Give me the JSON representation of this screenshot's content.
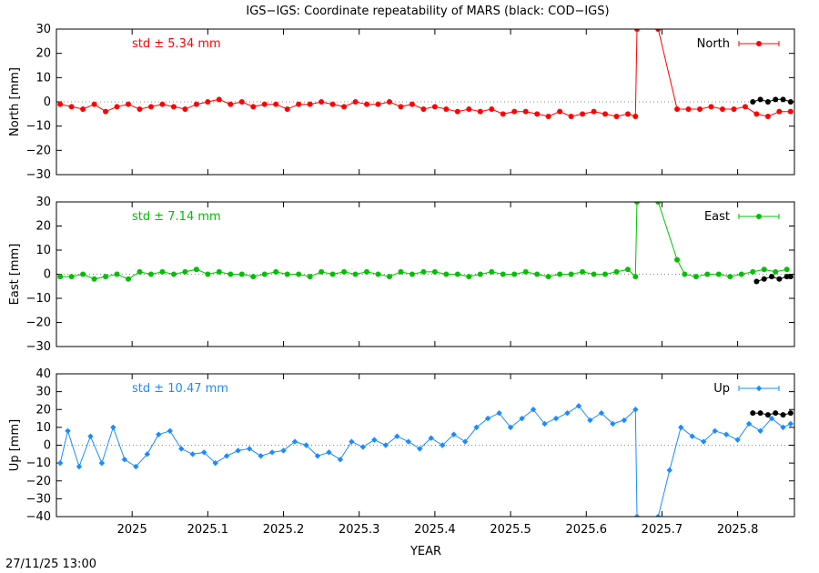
{
  "title": "IGS−IGS: Coordinate repeatability of MARS (black: COD−IGS)",
  "timestamp": "27/11/25 13:00",
  "xlabel": "YEAR",
  "x_ticks": [
    "2025",
    "2025.1",
    "2025.2",
    "2025.3",
    "2025.4",
    "2025.5",
    "2025.6",
    "2025.7",
    "2025.8"
  ],
  "chart_data": [
    {
      "type": "line",
      "name": "North",
      "ylabel": "North [mm]",
      "std_label": "std ± 5.34 mm",
      "color": "#ff0000",
      "xlim": [
        2024.9,
        2025.875
      ],
      "ylim": [
        -30,
        30
      ],
      "y_ticks": [
        -30,
        -20,
        -10,
        0,
        10,
        20,
        30
      ],
      "grid": false,
      "legend": "top-right",
      "series": [
        {
          "name": "North",
          "color": "#ff0000",
          "x": [
            2024.905,
            2024.92,
            2024.935,
            2024.95,
            2024.965,
            2024.98,
            2024.995,
            2025.01,
            2025.025,
            2025.04,
            2025.055,
            2025.07,
            2025.085,
            2025.1,
            2025.115,
            2025.13,
            2025.145,
            2025.16,
            2025.175,
            2025.19,
            2025.205,
            2025.22,
            2025.235,
            2025.25,
            2025.265,
            2025.28,
            2025.295,
            2025.31,
            2025.325,
            2025.34,
            2025.355,
            2025.37,
            2025.385,
            2025.4,
            2025.415,
            2025.43,
            2025.445,
            2025.46,
            2025.475,
            2025.49,
            2025.505,
            2025.52,
            2025.535,
            2025.55,
            2025.565,
            2025.58,
            2025.595,
            2025.61,
            2025.625,
            2025.64,
            2025.655,
            2025.665,
            2025.667,
            2025.695,
            2025.72,
            2025.735,
            2025.75,
            2025.765,
            2025.78,
            2025.795,
            2025.81,
            2025.825,
            2025.84,
            2025.855,
            2025.87
          ],
          "y": [
            -1,
            -2,
            -3,
            -1,
            -4,
            -2,
            -1,
            -3,
            -2,
            -1,
            -2,
            -3,
            -1,
            0,
            1,
            -1,
            0,
            -2,
            -1,
            -1,
            -3,
            -1,
            -1,
            0,
            -1,
            -2,
            0,
            -1,
            -1,
            0,
            -2,
            -1,
            -3,
            -2,
            -3,
            -4,
            -3,
            -4,
            -3,
            -5,
            -4,
            -4,
            -5,
            -6,
            -4,
            -6,
            -5,
            -4,
            -5,
            -6,
            -5,
            -6,
            30,
            30,
            -3,
            -3,
            -3,
            -2,
            -3,
            -3,
            -2,
            -5,
            -6,
            -4,
            -4
          ]
        },
        {
          "name": "COD-IGS",
          "color": "#000000",
          "x": [
            2025.82,
            2025.83,
            2025.84,
            2025.85,
            2025.86,
            2025.87
          ],
          "y": [
            0,
            1,
            0,
            1,
            1,
            0
          ]
        }
      ]
    },
    {
      "type": "line",
      "name": "East",
      "ylabel": "East [mm]",
      "std_label": "std ± 7.14 mm",
      "color": "#00c000",
      "xlim": [
        2024.9,
        2025.875
      ],
      "ylim": [
        -30,
        30
      ],
      "y_ticks": [
        -30,
        -20,
        -10,
        0,
        10,
        20,
        30
      ],
      "grid": false,
      "legend": "top-right",
      "series": [
        {
          "name": "East",
          "color": "#00c000",
          "x": [
            2024.905,
            2024.92,
            2024.935,
            2024.95,
            2024.965,
            2024.98,
            2024.995,
            2025.01,
            2025.025,
            2025.04,
            2025.055,
            2025.07,
            2025.085,
            2025.1,
            2025.115,
            2025.13,
            2025.145,
            2025.16,
            2025.175,
            2025.19,
            2025.205,
            2025.22,
            2025.235,
            2025.25,
            2025.265,
            2025.28,
            2025.295,
            2025.31,
            2025.325,
            2025.34,
            2025.355,
            2025.37,
            2025.385,
            2025.4,
            2025.415,
            2025.43,
            2025.445,
            2025.46,
            2025.475,
            2025.49,
            2025.505,
            2025.52,
            2025.535,
            2025.55,
            2025.565,
            2025.58,
            2025.595,
            2025.61,
            2025.625,
            2025.64,
            2025.655,
            2025.665,
            2025.667,
            2025.695,
            2025.72,
            2025.73,
            2025.745,
            2025.76,
            2025.775,
            2025.79,
            2025.805,
            2025.82,
            2025.835,
            2025.85,
            2025.865
          ],
          "y": [
            -1,
            -1,
            0,
            -2,
            -1,
            0,
            -2,
            1,
            0,
            1,
            0,
            1,
            2,
            0,
            1,
            0,
            0,
            -1,
            0,
            1,
            0,
            0,
            -1,
            1,
            0,
            1,
            0,
            1,
            0,
            -1,
            1,
            0,
            1,
            1,
            0,
            0,
            -1,
            0,
            1,
            0,
            0,
            1,
            0,
            -1,
            0,
            0,
            1,
            0,
            0,
            1,
            2,
            -1,
            30,
            30,
            6,
            0,
            -1,
            0,
            0,
            -1,
            0,
            1,
            2,
            1,
            2
          ]
        },
        {
          "name": "COD-IGS",
          "color": "#000000",
          "x": [
            2025.825,
            2025.835,
            2025.845,
            2025.855,
            2025.865,
            2025.87
          ],
          "y": [
            -3,
            -2,
            -1,
            -2,
            -1,
            -1
          ]
        }
      ]
    },
    {
      "type": "line",
      "name": "Up",
      "ylabel": "Up [mm]",
      "std_label": "std ± 10.47 mm",
      "color": "#1a8cff",
      "xlim": [
        2024.9,
        2025.875
      ],
      "ylim": [
        -40,
        40
      ],
      "y_ticks": [
        -40,
        -30,
        -20,
        -10,
        0,
        10,
        20,
        30,
        40
      ],
      "grid": false,
      "legend": "top-right",
      "series": [
        {
          "name": "Up",
          "color": "#1a8cff",
          "x": [
            2024.905,
            2024.915,
            2024.93,
            2024.945,
            2024.96,
            2024.975,
            2024.99,
            2025.005,
            2025.02,
            2025.035,
            2025.05,
            2025.065,
            2025.08,
            2025.095,
            2025.11,
            2025.125,
            2025.14,
            2025.155,
            2025.17,
            2025.185,
            2025.2,
            2025.215,
            2025.23,
            2025.245,
            2025.26,
            2025.275,
            2025.29,
            2025.305,
            2025.32,
            2025.335,
            2025.35,
            2025.365,
            2025.38,
            2025.395,
            2025.41,
            2025.425,
            2025.44,
            2025.455,
            2025.47,
            2025.485,
            2025.5,
            2025.515,
            2025.53,
            2025.545,
            2025.56,
            2025.575,
            2025.59,
            2025.605,
            2025.62,
            2025.635,
            2025.65,
            2025.665,
            2025.667,
            2025.695,
            2025.71,
            2025.725,
            2025.74,
            2025.755,
            2025.77,
            2025.785,
            2025.8,
            2025.815,
            2025.83,
            2025.845,
            2025.86,
            2025.87
          ],
          "y": [
            -10,
            8,
            -12,
            5,
            -10,
            10,
            -8,
            -12,
            -5,
            6,
            8,
            -2,
            -5,
            -4,
            -10,
            -6,
            -3,
            -2,
            -6,
            -4,
            -3,
            2,
            0,
            -6,
            -4,
            -8,
            2,
            -1,
            3,
            0,
            5,
            2,
            -2,
            4,
            0,
            6,
            2,
            10,
            15,
            18,
            10,
            15,
            20,
            12,
            15,
            18,
            22,
            14,
            18,
            12,
            14,
            20,
            -40,
            -40,
            -14,
            10,
            5,
            2,
            8,
            6,
            3,
            12,
            8,
            15,
            10,
            12
          ]
        },
        {
          "name": "COD-IGS",
          "color": "#000000",
          "x": [
            2025.82,
            2025.83,
            2025.84,
            2025.85,
            2025.86,
            2025.87
          ],
          "y": [
            18,
            18,
            17,
            18,
            17,
            18
          ]
        }
      ]
    }
  ]
}
